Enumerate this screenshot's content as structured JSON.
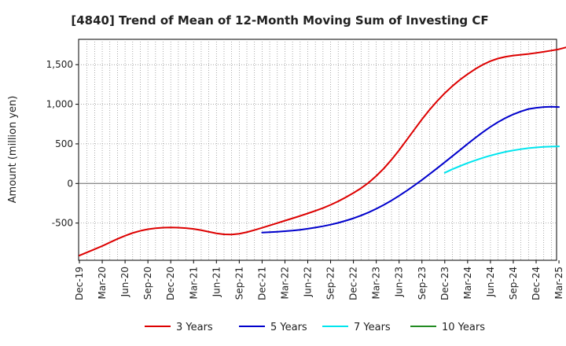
{
  "chart_data": {
    "type": "line",
    "title": "[4840]  Trend of Mean of 12-Month Moving Sum of Investing CF",
    "xlabel": "",
    "ylabel": "Amount (million yen)",
    "ylim": [
      -970,
      1820
    ],
    "yticks": [
      1500,
      1000,
      500,
      0,
      -500
    ],
    "ytick_labels": [
      "1,500",
      "1,000",
      "500",
      "0",
      "-500"
    ],
    "x_tick_labels": [
      "Dec-19",
      "Mar-20",
      "Jun-20",
      "Sep-20",
      "Dec-20",
      "Mar-21",
      "Jun-21",
      "Sep-21",
      "Dec-21",
      "Mar-22",
      "Jun-22",
      "Sep-22",
      "Dec-22",
      "Mar-23",
      "Jun-23",
      "Sep-23",
      "Dec-23",
      "Mar-24",
      "Jun-24",
      "Sep-24",
      "Dec-24",
      "Mar-25"
    ],
    "grid": true,
    "legend_position": "bottom",
    "series": [
      {
        "name": "3 Years",
        "color": "#dd0000",
        "start_index": 0,
        "values": [
          -910,
          -870,
          -830,
          -790,
          -745,
          -700,
          -660,
          -625,
          -598,
          -578,
          -565,
          -558,
          -556,
          -558,
          -564,
          -574,
          -590,
          -610,
          -630,
          -642,
          -645,
          -635,
          -615,
          -588,
          -560,
          -530,
          -500,
          -470,
          -440,
          -410,
          -378,
          -345,
          -310,
          -270,
          -225,
          -175,
          -120,
          -60,
          10,
          95,
          190,
          300,
          420,
          550,
          680,
          810,
          930,
          1040,
          1140,
          1230,
          1310,
          1380,
          1445,
          1500,
          1545,
          1578,
          1600,
          1615,
          1625,
          1635,
          1648,
          1662,
          1678,
          1695,
          1720
        ]
      },
      {
        "name": "5 Years",
        "color": "#0000cc",
        "start_index": 24,
        "values": [
          -620,
          -615,
          -610,
          -603,
          -595,
          -585,
          -572,
          -557,
          -540,
          -520,
          -497,
          -470,
          -440,
          -405,
          -365,
          -320,
          -270,
          -215,
          -155,
          -92,
          -25,
          45,
          118,
          192,
          268,
          345,
          422,
          500,
          575,
          648,
          715,
          775,
          828,
          873,
          910,
          940,
          955,
          965,
          968,
          965
        ]
      },
      {
        "name": "7 Years",
        "color": "#00e5ee",
        "start_index": 48,
        "values": [
          135,
          180,
          220,
          258,
          292,
          324,
          352,
          377,
          400,
          418,
          433,
          446,
          455,
          462,
          466,
          468
        ]
      },
      {
        "name": "10 Years",
        "color": "#228b22",
        "start_index": 0,
        "values": []
      }
    ]
  }
}
